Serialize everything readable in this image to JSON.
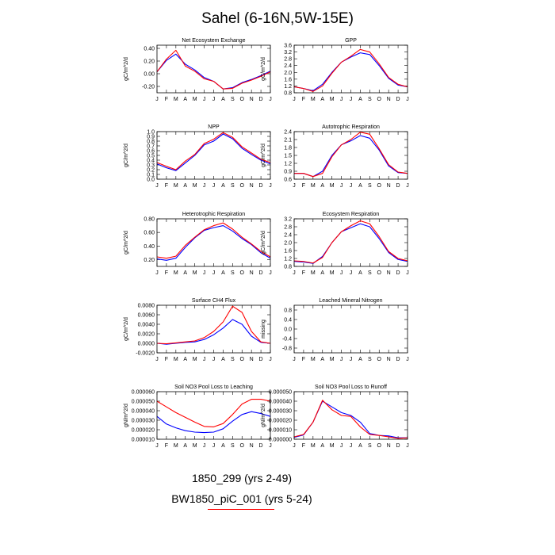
{
  "title": "Sahel (6-16N,5W-15E)",
  "legend": [
    {
      "label": "1850_299 (yrs 2-49)",
      "color": "#0000ff"
    },
    {
      "label": "BW1850_piC_001 (yrs 5-24)",
      "color": "#ff0000"
    }
  ],
  "colors": {
    "case1": "#0000ff",
    "case2": "#ff0000"
  },
  "chart_data": [
    {
      "type": "line",
      "title": "Net Ecosystem Exchange",
      "ylabel": "gC/m^2/d",
      "ylim": [
        -0.3,
        0.45
      ],
      "yticks": [
        -0.2,
        0.0,
        0.2,
        0.4
      ],
      "ytick_labels": [
        "-0.20",
        "0.00",
        "0.20",
        "0.40"
      ],
      "x": [
        "J",
        "F",
        "M",
        "A",
        "M",
        "J",
        "J",
        "A",
        "S",
        "O",
        "N",
        "D",
        "J"
      ],
      "series": [
        {
          "color": "#0000ff",
          "values": [
            0.03,
            0.21,
            0.31,
            0.15,
            0.06,
            -0.06,
            -0.12,
            -0.24,
            -0.22,
            -0.14,
            -0.09,
            -0.03,
            0.04
          ]
        },
        {
          "color": "#ff0000",
          "values": [
            0.03,
            0.23,
            0.37,
            0.12,
            0.04,
            -0.08,
            -0.12,
            -0.24,
            -0.23,
            -0.15,
            -0.1,
            -0.04,
            0.03
          ]
        }
      ]
    },
    {
      "type": "line",
      "title": "GPP",
      "ylabel": "gC/m^2/d",
      "ylim": [
        0.8,
        3.6
      ],
      "yticks": [
        0.8,
        1.2,
        1.6,
        2.0,
        2.4,
        2.8,
        3.2,
        3.6
      ],
      "ytick_labels": [
        "0.8",
        "1.2",
        "1.6",
        "2.0",
        "2.4",
        "2.8",
        "3.2",
        "3.6"
      ],
      "x": [
        "J",
        "F",
        "M",
        "A",
        "M",
        "J",
        "J",
        "A",
        "S",
        "O",
        "N",
        "D",
        "J"
      ],
      "series": [
        {
          "color": "#0000ff",
          "values": [
            1.15,
            1.05,
            0.92,
            1.3,
            2.0,
            2.6,
            2.9,
            3.15,
            3.05,
            2.4,
            1.65,
            1.25,
            1.15
          ]
        },
        {
          "color": "#ff0000",
          "values": [
            1.15,
            1.05,
            0.88,
            1.2,
            1.95,
            2.6,
            2.95,
            3.35,
            3.2,
            2.5,
            1.7,
            1.3,
            1.15
          ]
        }
      ]
    },
    {
      "type": "line",
      "title": "NPP",
      "ylabel": "gC/m^2/d",
      "ylim": [
        0.0,
        1.0
      ],
      "yticks": [
        0.0,
        0.1,
        0.2,
        0.3,
        0.4,
        0.5,
        0.6,
        0.7,
        0.8,
        0.9,
        1.0
      ],
      "ytick_labels": [
        "0.0",
        "0.1",
        "0.2",
        "0.3",
        "0.4",
        "0.5",
        "0.6",
        "0.7",
        "0.8",
        "0.9",
        "1.0"
      ],
      "x": [
        "J",
        "F",
        "M",
        "A",
        "M",
        "J",
        "J",
        "A",
        "S",
        "O",
        "N",
        "D",
        "J"
      ],
      "series": [
        {
          "color": "#0000ff",
          "values": [
            0.32,
            0.24,
            0.18,
            0.34,
            0.5,
            0.72,
            0.8,
            0.95,
            0.85,
            0.65,
            0.52,
            0.4,
            0.32
          ]
        },
        {
          "color": "#ff0000",
          "values": [
            0.35,
            0.27,
            0.2,
            0.38,
            0.52,
            0.75,
            0.84,
            0.98,
            0.88,
            0.68,
            0.55,
            0.42,
            0.35
          ]
        }
      ]
    },
    {
      "type": "line",
      "title": "Autotrophic Respiration",
      "ylabel": "gC/m^2/d",
      "ylim": [
        0.6,
        2.4
      ],
      "yticks": [
        0.6,
        0.9,
        1.2,
        1.5,
        1.8,
        2.1,
        2.4
      ],
      "ytick_labels": [
        "0.6",
        "0.9",
        "1.2",
        "1.5",
        "1.8",
        "2.1",
        "2.4"
      ],
      "x": [
        "J",
        "F",
        "M",
        "A",
        "M",
        "J",
        "J",
        "A",
        "S",
        "O",
        "N",
        "D",
        "J"
      ],
      "series": [
        {
          "color": "#0000ff",
          "values": [
            0.82,
            0.82,
            0.7,
            0.9,
            1.5,
            1.9,
            2.05,
            2.25,
            2.15,
            1.7,
            1.1,
            0.85,
            0.82
          ]
        },
        {
          "color": "#ff0000",
          "values": [
            0.82,
            0.82,
            0.7,
            0.82,
            1.45,
            1.9,
            2.1,
            2.38,
            2.3,
            1.75,
            1.15,
            0.87,
            0.82
          ]
        }
      ]
    },
    {
      "type": "line",
      "title": "Heterotrophic Respiration",
      "ylabel": "gC/m^2/d",
      "ylim": [
        0.1,
        0.8
      ],
      "yticks": [
        0.2,
        0.4,
        0.6,
        0.8
      ],
      "ytick_labels": [
        "0.20",
        "0.40",
        "0.60",
        "0.80"
      ],
      "x": [
        "J",
        "F",
        "M",
        "A",
        "M",
        "J",
        "J",
        "A",
        "S",
        "O",
        "N",
        "D",
        "J"
      ],
      "series": [
        {
          "color": "#0000ff",
          "values": [
            0.21,
            0.19,
            0.22,
            0.38,
            0.52,
            0.63,
            0.67,
            0.7,
            0.62,
            0.51,
            0.42,
            0.3,
            0.22
          ]
        },
        {
          "color": "#ff0000",
          "values": [
            0.24,
            0.22,
            0.25,
            0.41,
            0.53,
            0.64,
            0.7,
            0.74,
            0.65,
            0.53,
            0.43,
            0.32,
            0.24
          ]
        }
      ]
    },
    {
      "type": "line",
      "title": "Ecosystem Respiration",
      "ylabel": "gC/m^2/d",
      "ylim": [
        0.8,
        3.2
      ],
      "yticks": [
        0.8,
        1.2,
        1.6,
        2.0,
        2.4,
        2.8,
        3.2
      ],
      "ytick_labels": [
        "0.8",
        "1.2",
        "1.6",
        "2.0",
        "2.4",
        "2.8",
        "3.2"
      ],
      "x": [
        "J",
        "F",
        "M",
        "A",
        "M",
        "J",
        "J",
        "A",
        "S",
        "O",
        "N",
        "D",
        "J"
      ],
      "series": [
        {
          "color": "#0000ff",
          "values": [
            1.05,
            1.02,
            0.95,
            1.3,
            2.0,
            2.55,
            2.75,
            2.95,
            2.8,
            2.2,
            1.5,
            1.15,
            1.05
          ]
        },
        {
          "color": "#ff0000",
          "values": [
            1.08,
            1.05,
            0.97,
            1.25,
            2.0,
            2.55,
            2.85,
            3.1,
            2.95,
            2.3,
            1.55,
            1.2,
            1.08
          ]
        }
      ]
    },
    {
      "type": "line",
      "title": "Surface CH4 Flux",
      "ylabel": "gC/m^2/d",
      "ylim": [
        -0.002,
        0.008
      ],
      "yticks": [
        -0.002,
        0.0,
        0.002,
        0.004,
        0.006,
        0.008
      ],
      "ytick_labels": [
        "-0.0020",
        "0.0000",
        "0.0020",
        "0.0040",
        "0.0060",
        "0.0080"
      ],
      "x": [
        "J",
        "F",
        "M",
        "A",
        "M",
        "J",
        "J",
        "A",
        "S",
        "O",
        "N",
        "D",
        "J"
      ],
      "series": [
        {
          "color": "#0000ff",
          "values": [
            0.0,
            -0.0002,
            0.0,
            0.0002,
            0.0003,
            0.0008,
            0.0018,
            0.0032,
            0.005,
            0.004,
            0.0015,
            0.0002,
            0.0
          ]
        },
        {
          "color": "#ff0000",
          "values": [
            0.0,
            -0.0001,
            0.0001,
            0.0003,
            0.0005,
            0.0012,
            0.0025,
            0.0045,
            0.0078,
            0.0065,
            0.0025,
            0.0003,
            0.0
          ]
        }
      ]
    },
    {
      "type": "line",
      "title": "Leached Mineral Nitrogen",
      "ylabel": "missing",
      "ylim": [
        -1.0,
        1.0
      ],
      "yticks": [
        -0.8,
        -0.4,
        0.0,
        0.4,
        0.8
      ],
      "ytick_labels": [
        "-0.8",
        "-0.4",
        "0.0",
        "0.4",
        "0.8"
      ],
      "x": [
        "J",
        "F",
        "M",
        "A",
        "M",
        "J",
        "J",
        "A",
        "S",
        "O",
        "N",
        "D",
        "J"
      ],
      "series": []
    },
    {
      "type": "line",
      "title": "Soil NO3 Pool Loss to Leaching",
      "ylabel": "gN/m^2/d",
      "ylim": [
        1e-05,
        6e-05
      ],
      "yticks": [
        1e-05,
        2e-05,
        3e-05,
        4e-05,
        5e-05,
        6e-05
      ],
      "ytick_labels": [
        "0.000010",
        "0.000020",
        "0.000030",
        "0.000040",
        "0.000050",
        "0.000060"
      ],
      "x": [
        "J",
        "F",
        "M",
        "A",
        "M",
        "J",
        "J",
        "A",
        "S",
        "O",
        "N",
        "D",
        "J"
      ],
      "series": [
        {
          "color": "#0000ff",
          "values": [
            3.4e-05,
            2.6e-05,
            2.2e-05,
            1.9e-05,
            1.75e-05,
            1.7e-05,
            1.75e-05,
            2.1e-05,
            2.9e-05,
            3.6e-05,
            3.9e-05,
            3.7e-05,
            3.4e-05
          ]
        },
        {
          "color": "#ff0000",
          "values": [
            5e-05,
            4.4e-05,
            3.8e-05,
            3.3e-05,
            2.8e-05,
            2.35e-05,
            2.3e-05,
            2.65e-05,
            3.6e-05,
            4.7e-05,
            5.2e-05,
            5.2e-05,
            5e-05
          ]
        }
      ]
    },
    {
      "type": "line",
      "title": "Soil NO3 Pool Loss to Runoff",
      "ylabel": "gN/m^2/d",
      "ylim": [
        0.0,
        5e-05
      ],
      "yticks": [
        0.0,
        1e-05,
        2e-05,
        3e-05,
        4e-05,
        5e-05
      ],
      "ytick_labels": [
        "0.000000",
        "0.000010",
        "0.000020",
        "0.000030",
        "0.000040",
        "0.000050"
      ],
      "x": [
        "J",
        "F",
        "M",
        "A",
        "M",
        "J",
        "J",
        "A",
        "S",
        "O",
        "N",
        "D",
        "J"
      ],
      "series": [
        {
          "color": "#0000ff",
          "values": [
            2e-06,
            4.5e-06,
            1.8e-05,
            4e-05,
            3.4e-05,
            2.8e-05,
            2.5e-05,
            1.8e-05,
            6e-06,
            4e-06,
            3.5e-06,
            1.5e-06,
            1.5e-06
          ]
        },
        {
          "color": "#ff0000",
          "values": [
            2.5e-06,
            5e-06,
            1.8e-05,
            4.1e-05,
            3.1e-05,
            2.5e-05,
            2.4e-05,
            1.3e-05,
            5e-06,
            4e-06,
            2.5e-06,
            1e-06,
            1.5e-06
          ]
        }
      ]
    }
  ]
}
